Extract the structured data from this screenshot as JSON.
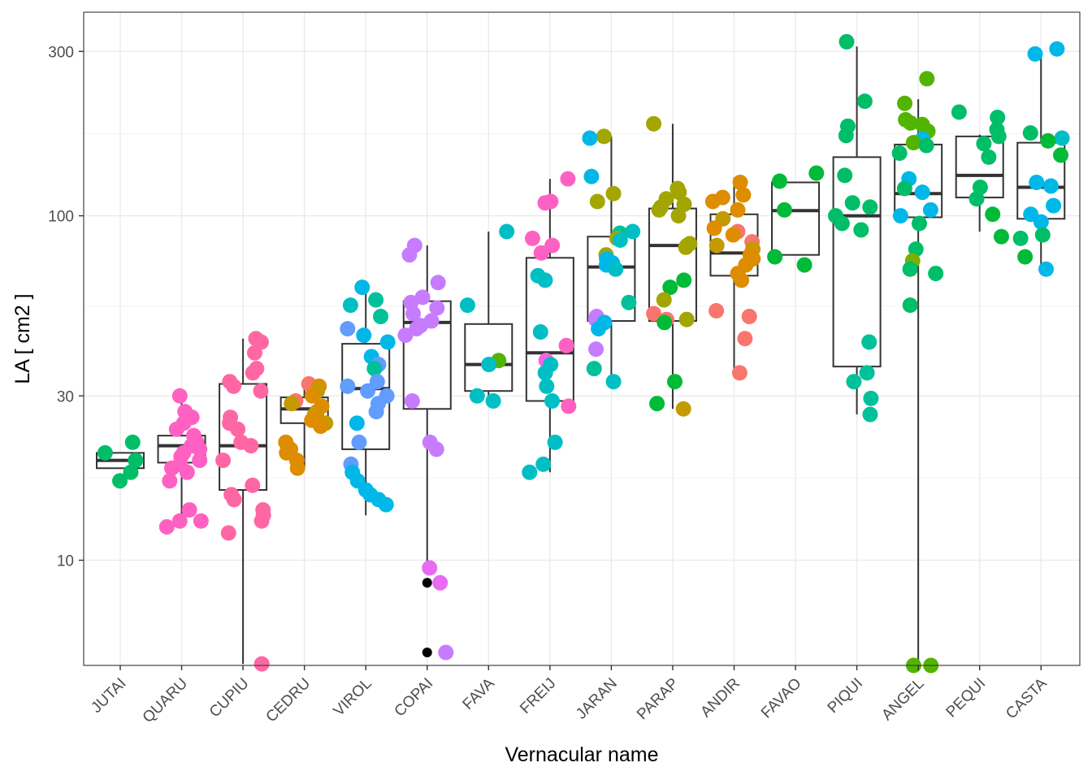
{
  "chart_data": {
    "type": "box+jitter",
    "xlabel": "Vernacular name",
    "ylabel": "LA [ cm2 ]",
    "y_scale": "log10",
    "ylim": [
      4.95,
      390
    ],
    "y_ticks": [
      10,
      30,
      100,
      300
    ],
    "y_tick_labels": [
      "10",
      "30",
      "100",
      "300"
    ],
    "y_minor_ticks": [
      5,
      17.3,
      54.8,
      173.2
    ],
    "grid": true,
    "legend": "none",
    "categories": [
      "JUTAI",
      "QUARU",
      "CUPIU",
      "CEDRU",
      "VIROL",
      "COPAI",
      "FAVA",
      "FREIJ",
      "JARAN",
      "PARAP",
      "ANDIR",
      "FAVAO",
      "PIQUI",
      "ANGEL",
      "PEQUI",
      "CASTA"
    ],
    "boxes": [
      {
        "q1": 18.5,
        "median": 19.5,
        "q3": 20.5,
        "whisker_low": 18.5,
        "whisker_high": 20.5,
        "outliers": []
      },
      {
        "q1": 19.2,
        "median": 21.5,
        "q3": 23.0,
        "whisker_low": 13.5,
        "whisker_high": 30.0,
        "outliers": []
      },
      {
        "q1": 16.0,
        "median": 21.5,
        "q3": 32.5,
        "whisker_low": 5.0,
        "whisker_high": 44.0,
        "outliers": []
      },
      {
        "q1": 25.0,
        "median": 27.5,
        "q3": 29.7,
        "whisker_low": 18.5,
        "whisker_high": 32.0,
        "outliers": []
      },
      {
        "q1": 21.0,
        "median": 31.5,
        "q3": 42.5,
        "whisker_low": 13.5,
        "whisker_high": 60.0,
        "outliers": []
      },
      {
        "q1": 27.5,
        "median": 49.0,
        "q3": 56.5,
        "whisker_low": 9.5,
        "whisker_high": 82.0,
        "outliers": [
          8.6,
          5.4
        ]
      },
      {
        "q1": 31.0,
        "median": 37.0,
        "q3": 48.5,
        "whisker_low": 29.0,
        "whisker_high": 90.0,
        "outliers": []
      },
      {
        "q1": 29.0,
        "median": 40.0,
        "q3": 75.5,
        "whisker_low": 18.0,
        "whisker_high": 128.0,
        "outliers": []
      },
      {
        "q1": 49.5,
        "median": 71.0,
        "q3": 87.0,
        "whisker_low": 33.0,
        "whisker_high": 170.0,
        "outliers": []
      },
      {
        "q1": 49.5,
        "median": 82.0,
        "q3": 105.0,
        "whisker_low": 27.5,
        "whisker_high": 185.0,
        "outliers": []
      },
      {
        "q1": 67.0,
        "median": 78.0,
        "q3": 101.0,
        "whisker_low": 35.0,
        "whisker_high": 129.0,
        "outliers": []
      },
      {
        "q1": 77.0,
        "median": 103.5,
        "q3": 125.0,
        "whisker_low": 77.0,
        "whisker_high": 125.0,
        "outliers": []
      },
      {
        "q1": 36.5,
        "median": 100.0,
        "q3": 148.0,
        "whisker_low": 26.5,
        "whisker_high": 310.0,
        "outliers": []
      },
      {
        "q1": 99.0,
        "median": 116.0,
        "q3": 161.0,
        "whisker_low": 4.95,
        "whisker_high": 218.0,
        "outliers": []
      },
      {
        "q1": 113.0,
        "median": 131.0,
        "q3": 170.0,
        "whisker_low": 90.0,
        "whisker_high": 172.0,
        "outliers": []
      },
      {
        "q1": 98.0,
        "median": 121.0,
        "q3": 163.0,
        "whisker_low": 71.0,
        "whisker_high": 300.0,
        "outliers": []
      }
    ],
    "points": [
      {
        "category": "JUTAI",
        "values": [
          18.0,
          19.5,
          20.5,
          22.0,
          17.0
        ],
        "colors": [
          "#00BE67",
          "#00BE67",
          "#00BE67",
          "#00BE67",
          "#00BE67"
        ]
      },
      {
        "category": "QUARU",
        "values": [
          30.0,
          27.0,
          26.0,
          25.0,
          24.0,
          23.0,
          22.0,
          21.5,
          21.0,
          20.5,
          20.0,
          19.5,
          19.0,
          18.5,
          18.0,
          17.0,
          14.0,
          13.0,
          13.0,
          12.5
        ],
        "colors": [
          "#FF61C3",
          "#FF61C3",
          "#FF61C3",
          "#FF61C3",
          "#FF61C3",
          "#FF61C3",
          "#FF61C3",
          "#FF61C3",
          "#FF61C3",
          "#FF61C3",
          "#FF61C3",
          "#FF61C3",
          "#FF61C3",
          "#FF61C3",
          "#FF61C3",
          "#FF61C3",
          "#FF61C3",
          "#FF61C3",
          "#FF61C3",
          "#FF61C3"
        ]
      },
      {
        "category": "CUPIU",
        "values": [
          44.0,
          43.0,
          40.0,
          36.0,
          35.0,
          33.0,
          32.0,
          31.0,
          26.0,
          25.0,
          24.0,
          22.0,
          21.5,
          19.5,
          16.5,
          15.5,
          15.0,
          14.0,
          13.5,
          13.0,
          12.0,
          5.0
        ],
        "colors": [
          "#FF67A4",
          "#FF67A4",
          "#FF67A4",
          "#FF67A4",
          "#FF67A4",
          "#FF67A4",
          "#FF67A4",
          "#FF67A4",
          "#FF67A4",
          "#FF67A4",
          "#FF67A4",
          "#FF67A4",
          "#FF67A4",
          "#FF67A4",
          "#FF67A4",
          "#FF67A4",
          "#FF67A4",
          "#FF67A4",
          "#FF67A4",
          "#FF67A4",
          "#FF67A4",
          "#FF67A4"
        ]
      },
      {
        "category": "CEDRU",
        "values": [
          32.5,
          32.0,
          31.0,
          30.0,
          29.0,
          28.5,
          28.0,
          27.0,
          26.5,
          26.0,
          25.5,
          25.0,
          24.5,
          22.0,
          21.0,
          20.5,
          19.5,
          18.5
        ],
        "colors": [
          "#F8766D",
          "#DE8C00",
          "#C49A00",
          "#DE8C00",
          "#F8766D",
          "#C49A00",
          "#DE8C00",
          "#DE8C00",
          "#C49A00",
          "#DE8C00",
          "#DE8C00",
          "#C49A00",
          "#DE8C00",
          "#DE8C00",
          "#DE8C00",
          "#DE8C00",
          "#DE8C00",
          "#DE8C00"
        ]
      },
      {
        "category": "VIROL",
        "values": [
          62.0,
          57.0,
          55.0,
          51.0,
          47.0,
          45.0,
          43.0,
          39.0,
          37.0,
          36.0,
          33.0,
          32.0,
          31.0,
          30.0,
          28.5,
          27.0,
          25.0,
          22.0,
          19.0,
          18.0,
          17.0,
          16.0,
          15.5,
          15.0,
          14.5
        ],
        "colors": [
          "#00B8E7",
          "#00C19A",
          "#00BFC4",
          "#00C19A",
          "#619CFF",
          "#00B8E7",
          "#00B8E7",
          "#00B8E7",
          "#619CFF",
          "#00C19A",
          "#619CFF",
          "#619CFF",
          "#619CFF",
          "#619CFF",
          "#619CFF",
          "#619CFF",
          "#00B8E7",
          "#619CFF",
          "#619CFF",
          "#00B8E7",
          "#00B8E7",
          "#00B8E7",
          "#00B8E7",
          "#00B8E7",
          "#00B8E7"
        ]
      },
      {
        "category": "COPAI",
        "values": [
          82.0,
          77.0,
          64.0,
          58.0,
          56.0,
          54.0,
          52.0,
          49.5,
          48.0,
          47.0,
          45.0,
          29.0,
          22.0,
          21.0,
          9.5,
          8.6,
          5.4
        ],
        "colors": [
          "#C77CFF",
          "#C77CFF",
          "#C77CFF",
          "#C77CFF",
          "#C77CFF",
          "#C77CFF",
          "#C77CFF",
          "#C77CFF",
          "#C77CFF",
          "#C77CFF",
          "#C77CFF",
          "#C77CFF",
          "#C77CFF",
          "#C77CFF",
          "#E76BF3",
          "#E76BF3",
          "#C77CFF"
        ]
      },
      {
        "category": "FAVA",
        "values": [
          90.0,
          55.0,
          38.0,
          37.0,
          30.0,
          29.0
        ],
        "colors": [
          "#00BFC4",
          "#00BFC4",
          "#53B400",
          "#00BFC4",
          "#00BFC4",
          "#00BFC4"
        ]
      },
      {
        "category": "FREIJ",
        "values": [
          128.0,
          110.0,
          109.0,
          86.0,
          82.0,
          78.0,
          67.0,
          65.0,
          46.0,
          42.0,
          38.0,
          37.0,
          35.0,
          32.0,
          29.0,
          28.0,
          22.0,
          19.0,
          18.0
        ],
        "colors": [
          "#FF61C3",
          "#FF61C3",
          "#FF61C3",
          "#FF61C3",
          "#FF61C3",
          "#FF61C3",
          "#00BFC4",
          "#00BFC4",
          "#00BFC4",
          "#FF61C3",
          "#F564E3",
          "#00BFC4",
          "#00BFC4",
          "#00BFC4",
          "#00BFC4",
          "#FF61C3",
          "#00BFC4",
          "#00BFC4",
          "#00BFC4"
        ]
      },
      {
        "category": "JARAN",
        "values": [
          170.0,
          168.0,
          130.0,
          116.0,
          110.0,
          90.0,
          89.0,
          86.0,
          85.0,
          77.0,
          75.0,
          73.0,
          72.0,
          70.0,
          56.0,
          51.0,
          50.0,
          49.0,
          47.0,
          41.0,
          36.0,
          33.0
        ],
        "colors": [
          "#A3A500",
          "#00B8E7",
          "#00B8E7",
          "#A3A500",
          "#A3A500",
          "#00BFC4",
          "#00C19A",
          "#A3A500",
          "#00BFC4",
          "#A3A500",
          "#00B8E7",
          "#00B8E7",
          "#00B8E7",
          "#00BFC4",
          "#00C19A",
          "#C77CFF",
          "#C77CFF",
          "#00B8E7",
          "#00B8E7",
          "#C77CFF",
          "#00C19A",
          "#00BFC4"
        ]
      },
      {
        "category": "PARAP",
        "values": [
          185.0,
          120.0,
          117.0,
          112.0,
          108.0,
          106.0,
          104.0,
          100.0,
          83.0,
          82.0,
          81.0,
          65.0,
          62.0,
          57.0,
          52.0,
          50.0,
          50.0,
          49.0,
          33.0,
          28.5,
          27.5
        ],
        "colors": [
          "#A3A500",
          "#A3A500",
          "#A3A500",
          "#A3A500",
          "#A3A500",
          "#A3A500",
          "#A3A500",
          "#A3A500",
          "#A3A500",
          "#A3A500",
          "#A3A500",
          "#00BA38",
          "#00BA38",
          "#A3A500",
          "#F8766D",
          "#F8766D",
          "#A3A500",
          "#00BA38",
          "#00BA38",
          "#00BA38",
          "#C49A00"
        ]
      },
      {
        "category": "ANDIR",
        "values": [
          125.0,
          115.0,
          113.0,
          110.0,
          104.0,
          98.0,
          92.0,
          90.0,
          88.0,
          84.0,
          82.0,
          80.0,
          77.0,
          75.0,
          72.0,
          68.0,
          65.0,
          53.0,
          51.0,
          44.0,
          35.0
        ],
        "colors": [
          "#DE8C00",
          "#DE8C00",
          "#DE8C00",
          "#DE8C00",
          "#DE8C00",
          "#C49A00",
          "#DE8C00",
          "#F8766D",
          "#DE8C00",
          "#F8766D",
          "#C49A00",
          "#C49A00",
          "#DE8C00",
          "#DE8C00",
          "#DE8C00",
          "#DE8C00",
          "#DE8C00",
          "#F8766D",
          "#F8766D",
          "#F8766D",
          "#F8766D"
        ]
      },
      {
        "category": "FAVAO",
        "values": [
          133.0,
          126.0,
          104.0,
          76.0,
          72.0
        ],
        "colors": [
          "#00BA38",
          "#00BA38",
          "#00BA38",
          "#00BA38",
          "#00BA38"
        ]
      },
      {
        "category": "PIQUI",
        "values": [
          320.0,
          215.0,
          182.0,
          171.0,
          131.0,
          109.0,
          106.0,
          100.0,
          95.0,
          91.0,
          43.0,
          35.0,
          33.0,
          29.5,
          26.5
        ],
        "colors": [
          "#00BE67",
          "#00BE67",
          "#00BE67",
          "#00BE67",
          "#00BE67",
          "#00BE67",
          "#00BE67",
          "#00BE67",
          "#00BE67",
          "#00BE67",
          "#00C19A",
          "#00C19A",
          "#00C19A",
          "#00C19A",
          "#00C19A"
        ]
      },
      {
        "category": "ANGEL",
        "values": [
          250.0,
          212.0,
          190.0,
          186.0,
          184.0,
          176.0,
          167.0,
          163.0,
          160.0,
          152.0,
          128.0,
          120.0,
          117.0,
          104.0,
          100.0,
          95.0,
          80.0,
          74.0,
          70.0,
          68.0,
          55.0,
          4.95,
          4.95
        ],
        "colors": [
          "#53B400",
          "#53B400",
          "#53B400",
          "#53B400",
          "#53B400",
          "#53B400",
          "#00B8E7",
          "#53B400",
          "#00BE67",
          "#00BE67",
          "#00B8E7",
          "#00BE67",
          "#00B8E7",
          "#00B8E7",
          "#00B8E7",
          "#00BE67",
          "#00BE67",
          "#7CAE00",
          "#00BE67",
          "#00BE67",
          "#00BE67",
          "#53B400",
          "#53B400"
        ]
      },
      {
        "category": "PEQUI",
        "values": [
          200.0,
          193.0,
          178.0,
          170.0,
          162.0,
          148.0,
          121.0,
          112.0,
          101.0,
          87.0
        ],
        "colors": [
          "#00BE67",
          "#00BE67",
          "#00BE67",
          "#00BE67",
          "#00BE67",
          "#00BE67",
          "#00BE67",
          "#00BE67",
          "#00BA38",
          "#00BA38"
        ]
      },
      {
        "category": "CASTA",
        "values": [
          305.0,
          295.0,
          174.0,
          168.0,
          165.0,
          150.0,
          125.0,
          122.0,
          107.0,
          101.0,
          96.0,
          88.0,
          86.0,
          76.0,
          70.0
        ],
        "colors": [
          "#00B8E7",
          "#00B8E7",
          "#00BE67",
          "#00BFC4",
          "#00BA38",
          "#00BA38",
          "#00B8E7",
          "#00B8E7",
          "#00B8E7",
          "#00B8E7",
          "#00B8E7",
          "#00BE67",
          "#00BE67",
          "#00BA38",
          "#00B8E7"
        ]
      }
    ]
  }
}
